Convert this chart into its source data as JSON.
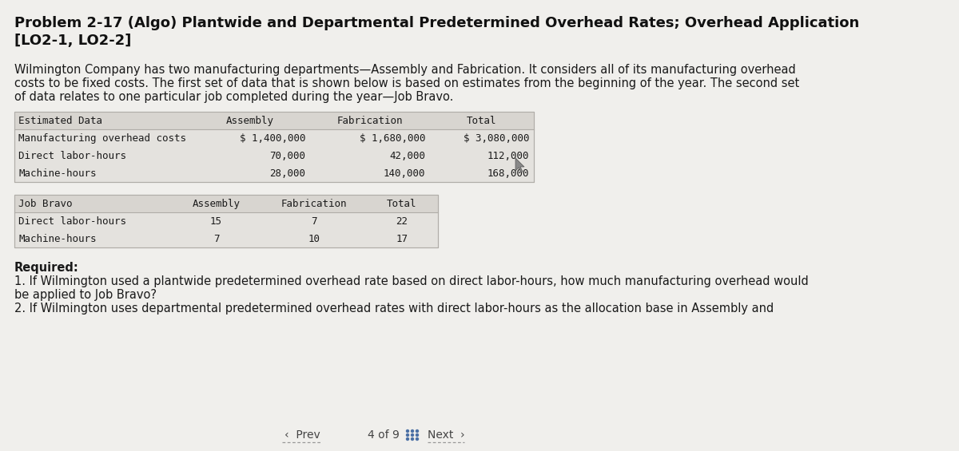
{
  "title_line1": "Problem 2-17 (Algo) Plantwide and Departmental Predetermined Overhead Rates; Overhead Application",
  "title_line2": "[LO2-1, LO2-2]",
  "body_line1": "Wilmington Company has two manufacturing departments—Assembly and Fabrication. It considers all of its manufacturing overhead",
  "body_line2": "costs to be fixed costs. The first set of data that is shown below is based on estimates from the beginning of the year. The second set",
  "body_line3": "of data relates to one particular job completed during the year—Job Bravo.",
  "table1_header": [
    "Estimated Data",
    "Assembly",
    "Fabrication",
    "Total"
  ],
  "table1_rows": [
    [
      "Manufacturing overhead costs",
      "$ 1,400,000",
      "$ 1,680,000",
      "$ 3,080,000"
    ],
    [
      "Direct labor-hours",
      "70,000",
      "42,000",
      "112,000"
    ],
    [
      "Machine-hours",
      "28,000",
      "140,000",
      "168,000"
    ]
  ],
  "table2_header": [
    "Job Bravo",
    "Assembly",
    "Fabrication",
    "Total"
  ],
  "table2_rows": [
    [
      "Direct labor-hours",
      "15",
      "7",
      "22"
    ],
    [
      "Machine-hours",
      "7",
      "10",
      "17"
    ]
  ],
  "required_label": "Required:",
  "req1_line1": "1. If Wilmington used a plantwide predetermined overhead rate based on direct labor-hours, how much manufacturing overhead would",
  "req1_line2": "be applied to Job Bravo?",
  "req2": "2. If Wilmington uses departmental predetermined overhead rates with direct labor-hours as the allocation base in Assembly and",
  "bg_color": "#f0efec",
  "table_bg": "#e4e2de",
  "table_header_bg": "#d8d5d0",
  "border_color": "#b0ada8",
  "text_color": "#1a1a1a",
  "title_color": "#111111",
  "nav_color": "#444444"
}
